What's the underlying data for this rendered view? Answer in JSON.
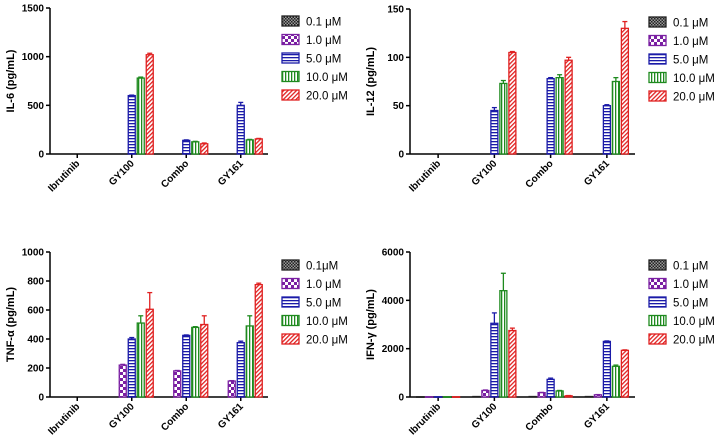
{
  "legend_colors": {
    "0.1": "#222222",
    "1.0": "#7a1fa2",
    "5.0": "#1a1aa8",
    "10.0": "#1e8a1e",
    "20.0": "#e02020"
  },
  "chart_data": [
    {
      "type": "bar",
      "ylabel": "IL-6 (pg/mL)",
      "ylim": [
        0,
        1500
      ],
      "yticks": [
        "0",
        "500",
        "1000",
        "1500"
      ],
      "categories": [
        "Ibrutinib",
        "GY100",
        "Combo",
        "GY161"
      ],
      "legend": [
        "0.1 μM",
        "1.0 μM",
        "5.0 μM",
        "10.0 μM",
        "20.0 μM"
      ],
      "series": [
        {
          "name": "0.1 μM",
          "values": [
            0,
            0,
            0,
            0
          ],
          "errors": [
            0,
            0,
            0,
            0
          ]
        },
        {
          "name": "1.0 μM",
          "values": [
            0,
            0,
            0,
            0
          ],
          "errors": [
            0,
            0,
            0,
            0
          ]
        },
        {
          "name": "5.0 μM",
          "values": [
            0,
            600,
            140,
            500
          ],
          "errors": [
            0,
            5,
            5,
            30
          ]
        },
        {
          "name": "10.0 μM",
          "values": [
            0,
            780,
            125,
            145
          ],
          "errors": [
            0,
            10,
            5,
            5
          ]
        },
        {
          "name": "20.0 μM",
          "values": [
            0,
            1020,
            105,
            155
          ],
          "errors": [
            0,
            15,
            8,
            5
          ]
        }
      ]
    },
    {
      "type": "bar",
      "ylabel": "IL-12 (pg/mL)",
      "ylim": [
        0,
        150
      ],
      "yticks": [
        "0",
        "50",
        "100",
        "150"
      ],
      "categories": [
        "Ibrutinib",
        "GY100",
        "Combo",
        "GY161"
      ],
      "legend": [
        "0.1 μM",
        "1.0 μM",
        "5.0 μM",
        "10.0 μM",
        "20.0 μM"
      ],
      "series": [
        {
          "name": "0.1 μM",
          "values": [
            0,
            0,
            0,
            0
          ],
          "errors": [
            0,
            0,
            0,
            0
          ]
        },
        {
          "name": "1.0 μM",
          "values": [
            0,
            0,
            0,
            0
          ],
          "errors": [
            0,
            0,
            0,
            0
          ]
        },
        {
          "name": "5.0 μM",
          "values": [
            0,
            45,
            78,
            50
          ],
          "errors": [
            0,
            3,
            1,
            1
          ]
        },
        {
          "name": "10.0 μM",
          "values": [
            0,
            73,
            79,
            75
          ],
          "errors": [
            0,
            3,
            3,
            4
          ]
        },
        {
          "name": "20.0 μM",
          "values": [
            0,
            105,
            97,
            130
          ],
          "errors": [
            0,
            1,
            3,
            7
          ]
        }
      ]
    },
    {
      "type": "bar",
      "ylabel": "TNF-α (pg/mL)",
      "ylim": [
        0,
        1000
      ],
      "yticks": [
        "0",
        "200",
        "400",
        "600",
        "800",
        "1000"
      ],
      "categories": [
        "Ibrutinib",
        "GY100",
        "Combo",
        "GY161"
      ],
      "legend": [
        "0.1μM",
        "1.0 μM",
        "5.0 μM",
        "10.0 μM",
        "20.0 μM"
      ],
      "series": [
        {
          "name": "0.1μM",
          "values": [
            0,
            0,
            0,
            0
          ],
          "errors": [
            0,
            0,
            0,
            0
          ]
        },
        {
          "name": "1.0 μM",
          "values": [
            0,
            220,
            180,
            110
          ],
          "errors": [
            0,
            5,
            3,
            3
          ]
        },
        {
          "name": "5.0 μM",
          "values": [
            0,
            400,
            425,
            375
          ],
          "errors": [
            0,
            10,
            3,
            10
          ]
        },
        {
          "name": "10.0 μM",
          "values": [
            0,
            510,
            480,
            490
          ],
          "errors": [
            0,
            50,
            5,
            70
          ]
        },
        {
          "name": "20.0 μM",
          "values": [
            0,
            605,
            500,
            775
          ],
          "errors": [
            0,
            115,
            60,
            10
          ]
        }
      ]
    },
    {
      "type": "bar",
      "ylabel": "IFN-γ (pg/mL)",
      "ylim": [
        0,
        6000
      ],
      "yticks": [
        "0",
        "2000",
        "4000",
        "6000"
      ],
      "categories": [
        "Ibrutinib",
        "GY100",
        "Combo",
        "GY161"
      ],
      "legend": [
        "0.1 μM",
        "1.0 μM",
        "5.0 μM",
        "10.0 μM",
        "20.0 μM"
      ],
      "series": [
        {
          "name": "0.1 μM",
          "values": [
            10,
            20,
            20,
            20
          ],
          "errors": [
            0,
            0,
            0,
            0
          ]
        },
        {
          "name": "1.0 μM",
          "values": [
            10,
            270,
            180,
            90
          ],
          "errors": [
            0,
            20,
            10,
            10
          ]
        },
        {
          "name": "5.0 μM",
          "values": [
            10,
            3050,
            730,
            2300
          ],
          "errors": [
            0,
            430,
            50,
            20
          ]
        },
        {
          "name": "10.0 μM",
          "values": [
            10,
            4400,
            250,
            1270
          ],
          "errors": [
            0,
            720,
            20,
            50
          ]
        },
        {
          "name": "20.0 μM",
          "values": [
            10,
            2750,
            50,
            1930
          ],
          "errors": [
            0,
            100,
            10,
            20
          ]
        }
      ]
    }
  ]
}
